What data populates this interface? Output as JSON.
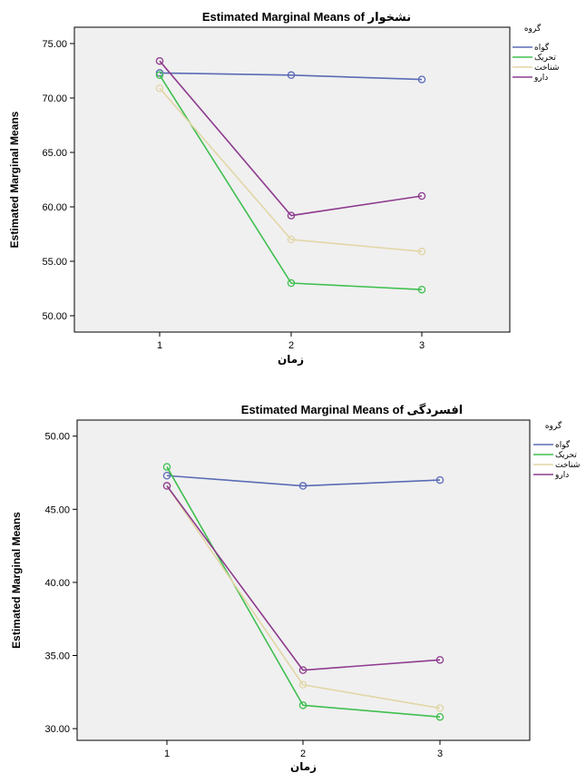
{
  "chart_data": [
    {
      "type": "line",
      "title": "Estimated Marginal Means of نشخوار",
      "xlabel": "زمان",
      "ylabel": "Estimated Marginal Means",
      "categories": [
        "1",
        "2",
        "3"
      ],
      "yticks": [
        "50.00",
        "55.00",
        "60.00",
        "65.00",
        "70.00",
        "75.00"
      ],
      "ylim": [
        48.5,
        76.5
      ],
      "legend_title": "گروه",
      "legend_position": "right",
      "grid": false,
      "series": [
        {
          "name": "گواه",
          "color": "#5b6bb5",
          "values": [
            72.3,
            72.1,
            71.7
          ]
        },
        {
          "name": "تحریک",
          "color": "#3fbf4f",
          "values": [
            72.1,
            53.0,
            52.4
          ]
        },
        {
          "name": "شناخت",
          "color": "#e2d6a6",
          "values": [
            70.9,
            57.0,
            55.9
          ]
        },
        {
          "name": "دارو",
          "color": "#8e3b8e",
          "values": [
            73.4,
            59.2,
            61.0
          ]
        }
      ]
    },
    {
      "type": "line",
      "title": "Estimated Marginal Means of افسردگی",
      "xlabel": "زمان",
      "ylabel": "Estimated Marginal Means",
      "categories": [
        "1",
        "2",
        "3"
      ],
      "yticks": [
        "30.00",
        "35.00",
        "40.00",
        "45.00",
        "50.00"
      ],
      "ylim": [
        29.2,
        51.1
      ],
      "legend_title": "گروه",
      "legend_position": "right",
      "grid": false,
      "series": [
        {
          "name": "گواه",
          "color": "#5b6bb5",
          "values": [
            47.3,
            46.6,
            47.0
          ]
        },
        {
          "name": "تحریک",
          "color": "#3fbf4f",
          "values": [
            47.9,
            31.6,
            30.8
          ]
        },
        {
          "name": "شناخت",
          "color": "#e2d6a6",
          "values": [
            46.6,
            33.0,
            31.4
          ]
        },
        {
          "name": "دارو",
          "color": "#8e3b8e",
          "values": [
            46.6,
            34.0,
            34.7
          ]
        }
      ]
    }
  ]
}
